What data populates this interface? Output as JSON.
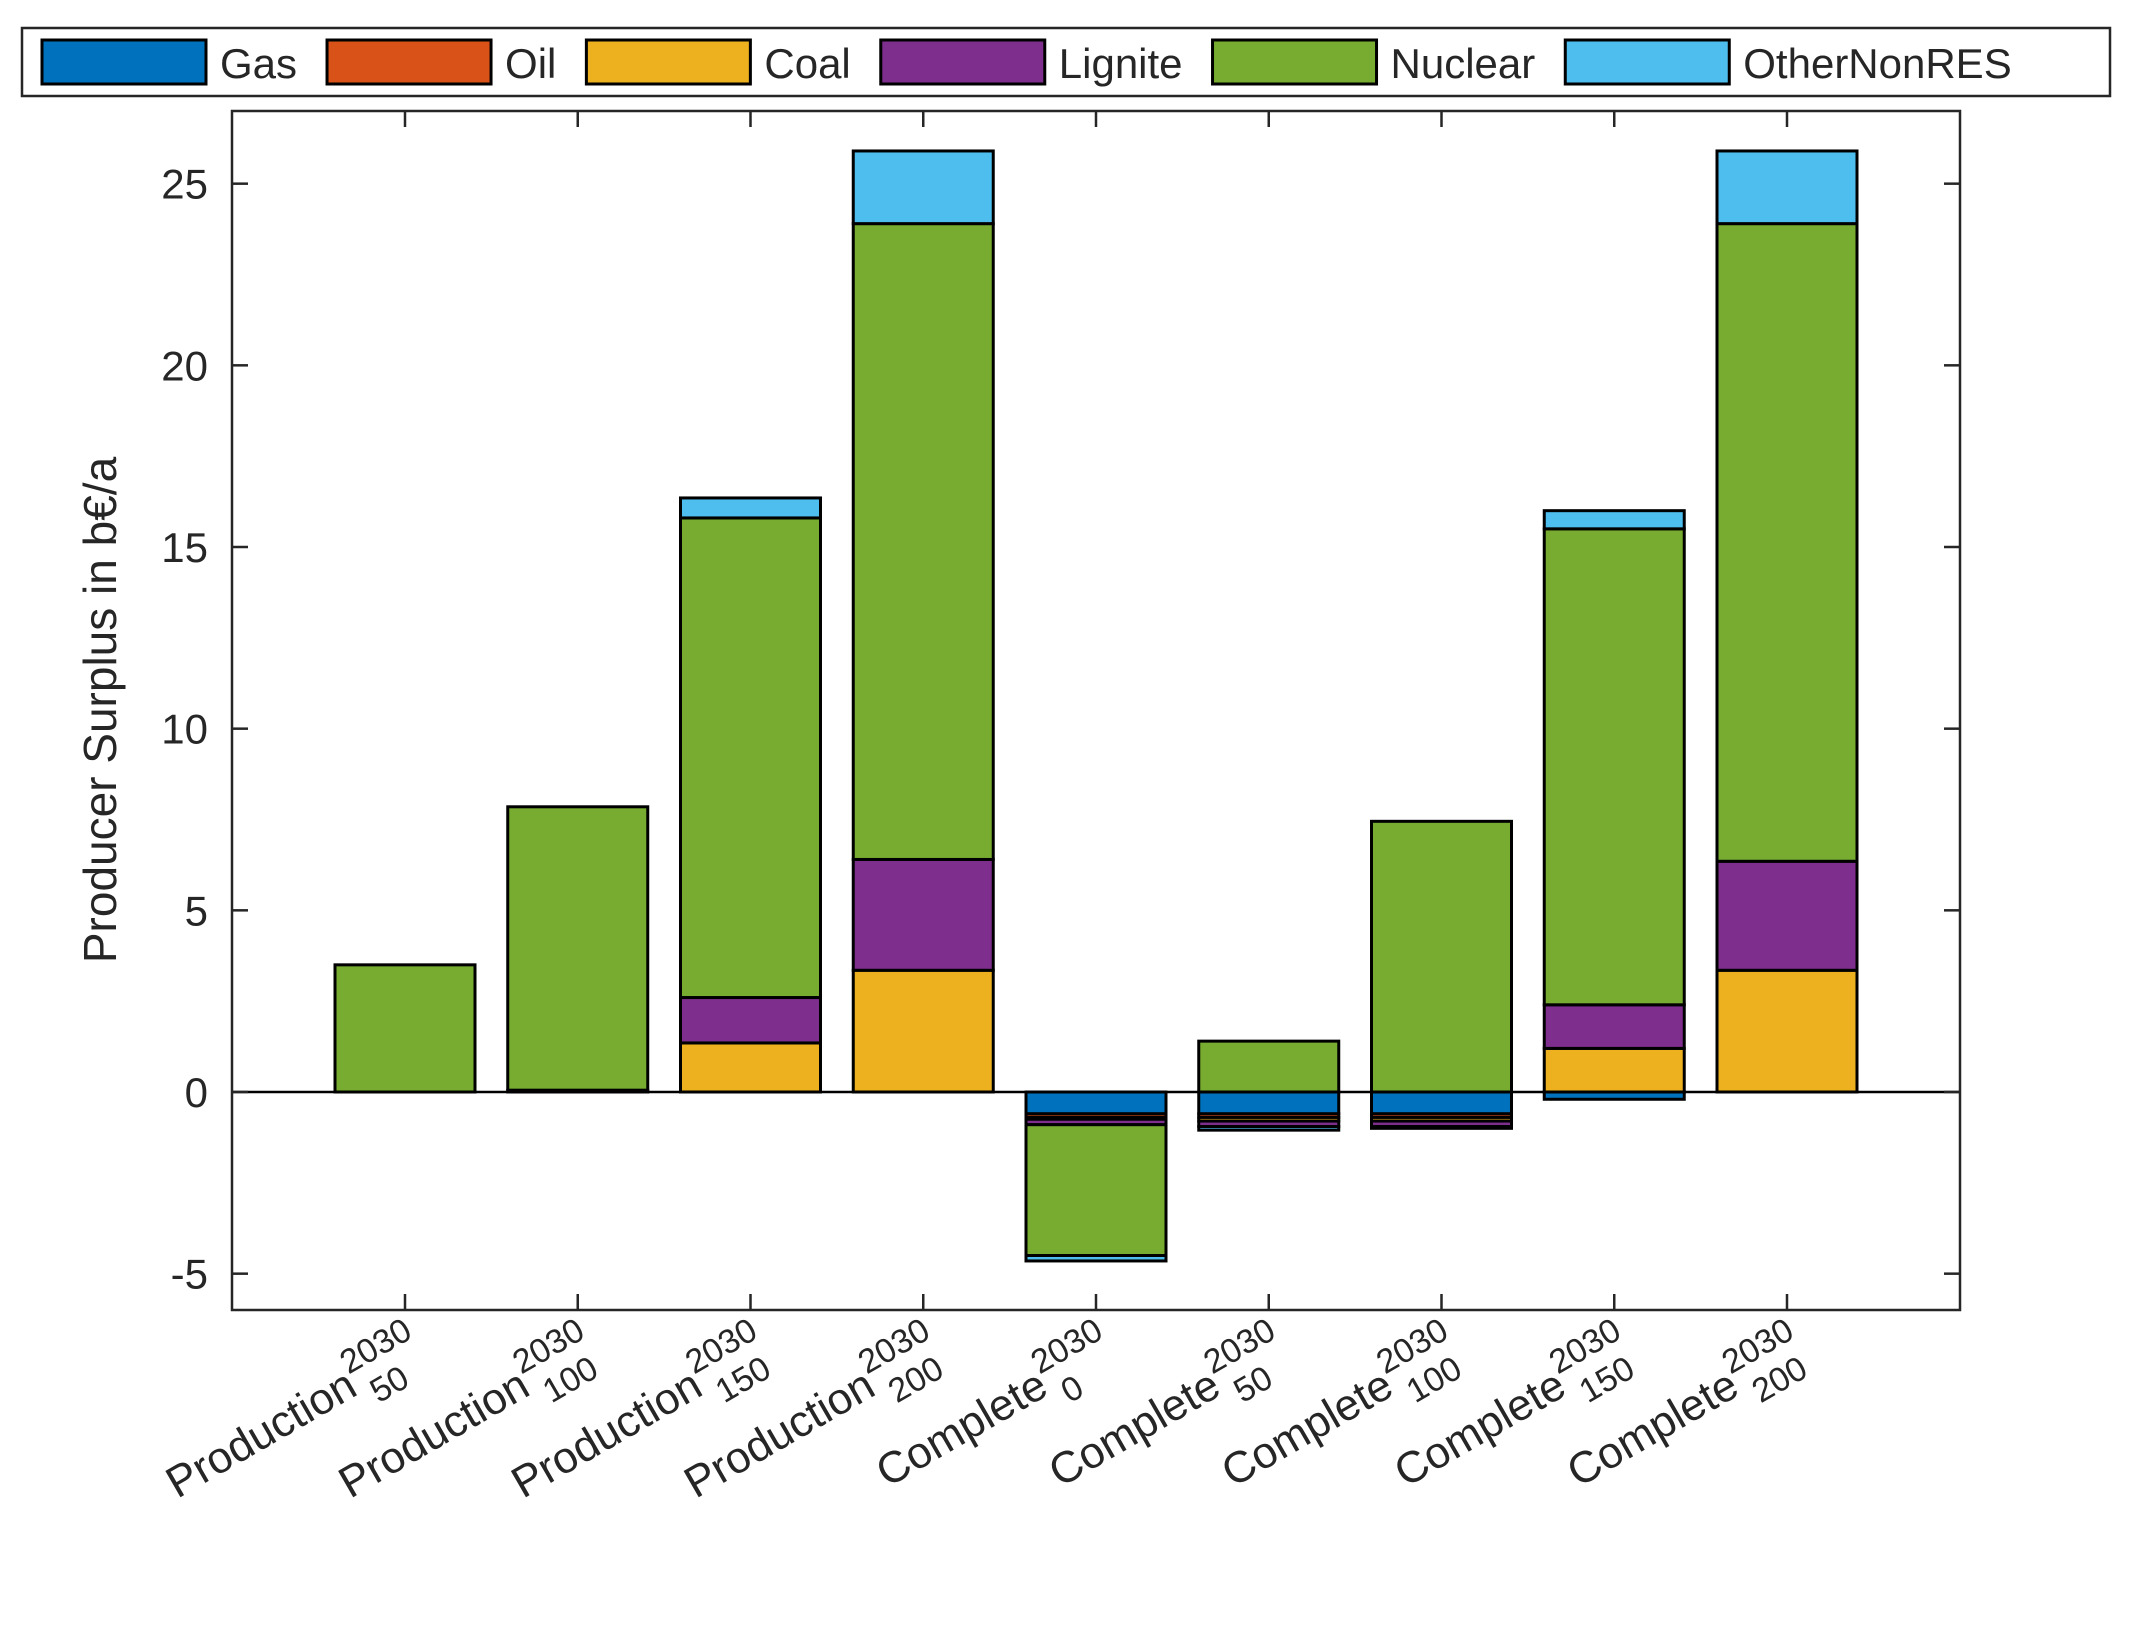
{
  "chart_data": {
    "type": "bar",
    "stacked": true,
    "title": "",
    "xlabel": "",
    "ylabel": "Producer Surplus in b€/a",
    "ylim": [
      -6,
      27
    ],
    "yticks": [
      -5,
      0,
      5,
      10,
      15,
      20,
      25
    ],
    "legend_position": "top",
    "categories": [
      {
        "name": "Production",
        "year": "2030",
        "level": "50"
      },
      {
        "name": "Production",
        "year": "2030",
        "level": "100"
      },
      {
        "name": "Production",
        "year": "2030",
        "level": "150"
      },
      {
        "name": "Production",
        "year": "2030",
        "level": "200"
      },
      {
        "name": "Complete",
        "year": "2030",
        "level": "0"
      },
      {
        "name": "Complete",
        "year": "2030",
        "level": "50"
      },
      {
        "name": "Complete",
        "year": "2030",
        "level": "100"
      },
      {
        "name": "Complete",
        "year": "2030",
        "level": "150"
      },
      {
        "name": "Complete",
        "year": "2030",
        "level": "200"
      }
    ],
    "series": [
      {
        "name": "Gas",
        "color": "#0072BD",
        "values": [
          0,
          0,
          0,
          0,
          -0.6,
          -0.6,
          -0.6,
          -0.2,
          0
        ]
      },
      {
        "name": "Oil",
        "color": "#D95319",
        "values": [
          0,
          0,
          0,
          0,
          -0.1,
          -0.1,
          -0.1,
          0,
          0
        ]
      },
      {
        "name": "Coal",
        "color": "#EDB120",
        "values": [
          0,
          0.05,
          1.35,
          3.35,
          -0.05,
          -0.1,
          -0.1,
          1.2,
          3.35
        ]
      },
      {
        "name": "Lignite",
        "color": "#7E2F8E",
        "values": [
          0,
          0,
          1.25,
          3.05,
          -0.15,
          -0.15,
          -0.15,
          1.2,
          3.0
        ]
      },
      {
        "name": "Nuclear",
        "color": "#77AC30",
        "values": [
          3.5,
          7.8,
          13.2,
          17.5,
          -3.6,
          1.4,
          7.45,
          13.1,
          17.55
        ]
      },
      {
        "name": "OtherNonRES",
        "color": "#4DBEEE",
        "values": [
          0,
          0,
          0.55,
          2.0,
          -0.15,
          -0.1,
          -0.05,
          0.5,
          2.0
        ]
      }
    ]
  }
}
